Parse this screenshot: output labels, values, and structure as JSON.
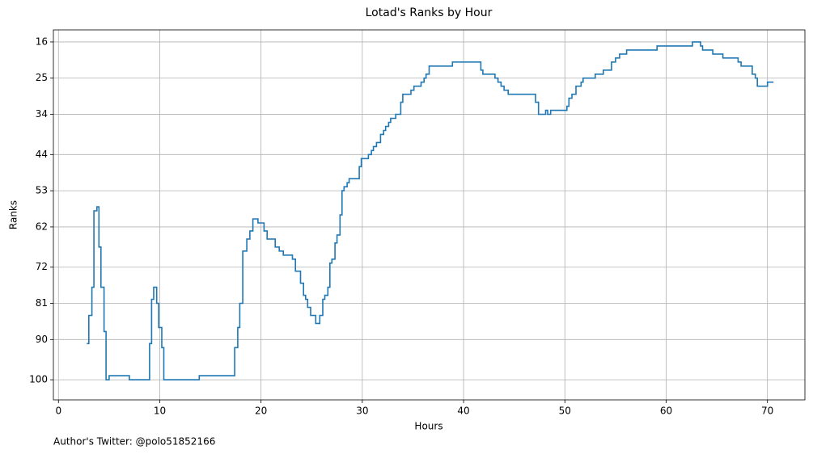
{
  "chart_data": {
    "type": "step",
    "title": "Lotad's Ranks by Hour",
    "x_label": "Hours",
    "y_label": "Ranks",
    "annotation": "Author's Twitter: @polo51852166",
    "xlim": [
      -0.5,
      73.7
    ],
    "ylim": [
      105,
      13
    ],
    "xticks": [
      0,
      10,
      20,
      30,
      40,
      50,
      60,
      70
    ],
    "yticks": [
      16,
      25,
      34,
      44,
      53,
      62,
      72,
      81,
      90,
      100
    ],
    "grid": true,
    "series": [
      {
        "color": "#1f77b4",
        "x": [
          2.8,
          3.0,
          3.3,
          3.5,
          3.8,
          4.0,
          4.2,
          4.5,
          4.7,
          5.0,
          7.0,
          9.0,
          9.2,
          9.4,
          9.7,
          9.9,
          10.2,
          10.4,
          13.9,
          17.4,
          17.7,
          17.9,
          18.2,
          18.6,
          18.9,
          19.2,
          19.7,
          20.3,
          20.6,
          21.4,
          21.8,
          22.2,
          23.1,
          23.4,
          23.9,
          24.2,
          24.4,
          24.6,
          24.9,
          25.4,
          25.8,
          26.1,
          26.3,
          26.6,
          26.8,
          27.0,
          27.3,
          27.5,
          27.8,
          28.0,
          28.2,
          28.5,
          28.7,
          29.7,
          29.9,
          30.6,
          30.9,
          31.1,
          31.4,
          31.8,
          32.1,
          32.3,
          32.6,
          32.8,
          33.3,
          33.8,
          34.0,
          34.8,
          35.1,
          35.8,
          36.1,
          36.3,
          36.6,
          38.9,
          41.7,
          41.9,
          43.1,
          43.4,
          43.7,
          44.0,
          44.4,
          47.1,
          47.4,
          48.1,
          48.3,
          48.6,
          50.2,
          50.4,
          50.7,
          51.1,
          51.6,
          51.8,
          53.0,
          53.8,
          54.6,
          55.0,
          55.4,
          56.1,
          59.1,
          62.6,
          63.4,
          63.6,
          64.6,
          65.6,
          67.1,
          67.4,
          68.5,
          68.8,
          69.0,
          70.0,
          70.6
        ],
        "values": [
          91,
          84,
          77,
          58,
          57,
          67,
          77,
          88,
          100,
          99,
          100,
          91,
          80,
          77,
          81,
          87,
          92,
          100,
          99,
          92,
          87,
          81,
          68,
          65,
          63,
          60,
          61,
          63,
          65,
          67,
          68,
          69,
          70,
          73,
          76,
          79,
          80,
          82,
          84,
          86,
          84,
          80,
          79,
          77,
          71,
          70,
          66,
          64,
          59,
          53,
          52,
          51,
          50,
          47,
          45,
          44,
          43,
          42,
          41,
          39,
          38,
          37,
          36,
          35,
          34,
          31,
          29,
          28,
          27,
          26,
          25,
          24,
          22,
          21,
          23,
          24,
          25,
          26,
          27,
          28,
          29,
          31,
          34,
          33,
          34,
          33,
          32,
          30,
          29,
          27,
          26,
          25,
          24,
          23,
          21,
          20,
          19,
          18,
          17,
          16,
          17,
          18,
          19,
          20,
          21,
          22,
          24,
          25,
          27,
          26,
          26
        ]
      }
    ]
  }
}
